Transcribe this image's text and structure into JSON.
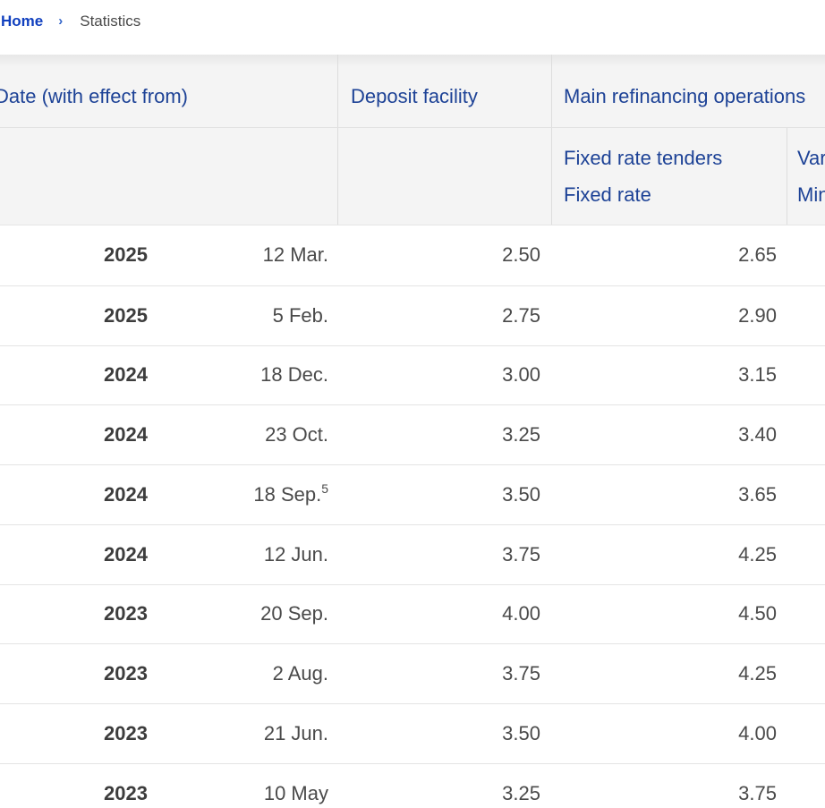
{
  "colors": {
    "header_blue": "#1d4296",
    "link_blue": "#1140bf",
    "body_text": "#4a4a4a",
    "year_text": "#3d3d3d",
    "header_background": "#f4f4f4",
    "divider": "#e4e4e4"
  },
  "breadcrumb": {
    "home": "Home",
    "separator": "›",
    "current": "Statistics"
  },
  "table": {
    "col_headers": {
      "date": "Date (with effect from)",
      "deposit": "Deposit facility",
      "main_refinancing": "Main refinancing operations"
    },
    "sub_headers": {
      "fixed": {
        "line1": "Fixed rate tenders",
        "line2": "Fixed rate"
      },
      "variable": {
        "line1": "Variable rate tenders",
        "line2": "Minimum bid rate"
      }
    },
    "rows": [
      {
        "year": "2025",
        "date": "12 Mar.",
        "date_sup": "",
        "deposit_facility": "2.50",
        "main_refinancing_fixed": "2.65"
      },
      {
        "year": "2025",
        "date": "5 Feb.",
        "date_sup": "",
        "deposit_facility": "2.75",
        "main_refinancing_fixed": "2.90"
      },
      {
        "year": "2024",
        "date": "18 Dec.",
        "date_sup": "",
        "deposit_facility": "3.00",
        "main_refinancing_fixed": "3.15"
      },
      {
        "year": "2024",
        "date": "23 Oct.",
        "date_sup": "",
        "deposit_facility": "3.25",
        "main_refinancing_fixed": "3.40"
      },
      {
        "year": "2024",
        "date": "18 Sep.",
        "date_sup": "5",
        "deposit_facility": "3.50",
        "main_refinancing_fixed": "3.65"
      },
      {
        "year": "2024",
        "date": "12 Jun.",
        "date_sup": "",
        "deposit_facility": "3.75",
        "main_refinancing_fixed": "4.25"
      },
      {
        "year": "2023",
        "date": "20 Sep.",
        "date_sup": "",
        "deposit_facility": "4.00",
        "main_refinancing_fixed": "4.50"
      },
      {
        "year": "2023",
        "date": "2 Aug.",
        "date_sup": "",
        "deposit_facility": "3.75",
        "main_refinancing_fixed": "4.25"
      },
      {
        "year": "2023",
        "date": "21 Jun.",
        "date_sup": "",
        "deposit_facility": "3.50",
        "main_refinancing_fixed": "4.00"
      },
      {
        "year": "2023",
        "date": "10 May",
        "date_sup": "",
        "deposit_facility": "3.25",
        "main_refinancing_fixed": "3.75"
      }
    ]
  }
}
